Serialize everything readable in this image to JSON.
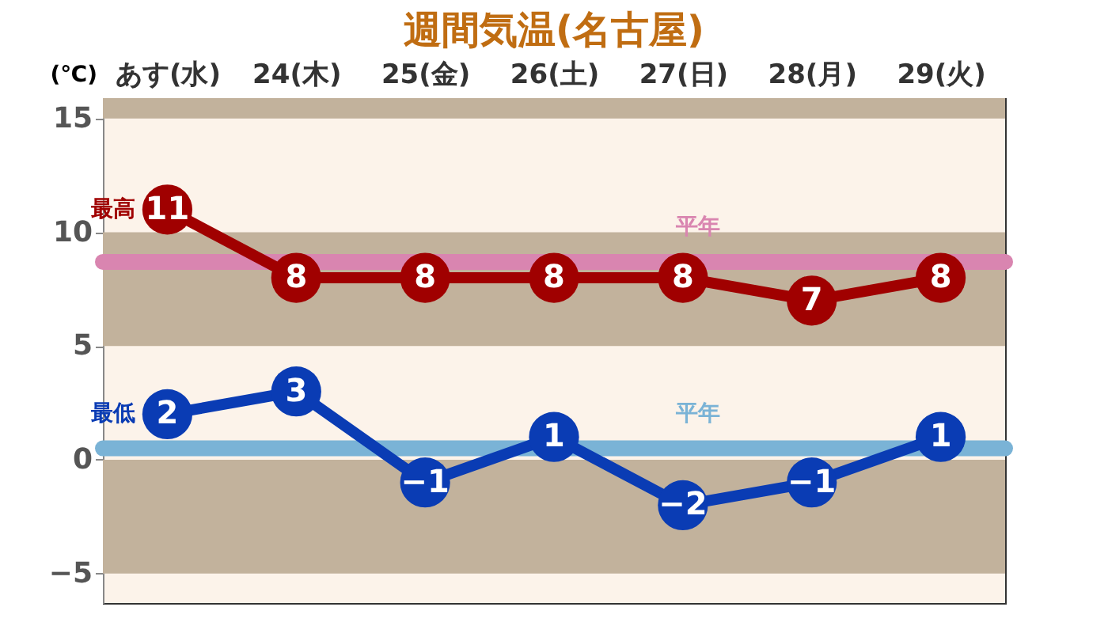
{
  "chart_data": {
    "type": "line",
    "title": "週間気温(名古屋)",
    "ylabel": "(℃)",
    "categories": [
      "あす(水)",
      "24(木)",
      "25(金)",
      "26(土)",
      "27(日)",
      "28(月)",
      "29(火)"
    ],
    "series": [
      {
        "name": "最高",
        "color": "#a00000",
        "values": [
          11,
          8,
          8,
          8,
          8,
          7,
          8
        ]
      },
      {
        "name": "最低",
        "color": "#0a3cb4",
        "values": [
          2,
          3,
          -1,
          1,
          -2,
          -1,
          1
        ]
      }
    ],
    "ylim": [
      -6.3,
      15.9
    ],
    "yticks": [
      -5,
      0,
      5,
      10,
      15
    ],
    "ref_lines": [
      {
        "axis": "y",
        "value": 8.7,
        "label": "平年",
        "color": "#d985b0"
      },
      {
        "axis": "y",
        "value": 0.5,
        "label": "平年",
        "color": "#7ab3d6"
      }
    ],
    "bands": [
      {
        "axis": "y",
        "from": 15,
        "to": 15.9,
        "color": "#c2b29c"
      },
      {
        "axis": "y",
        "from": 5,
        "to": 10,
        "color": "#c2b29c"
      },
      {
        "axis": "y",
        "from": -5,
        "to": 0,
        "color": "#c2b29c"
      }
    ],
    "data_labels": true,
    "marker": "circle",
    "line_style": "solid",
    "grid": false
  }
}
